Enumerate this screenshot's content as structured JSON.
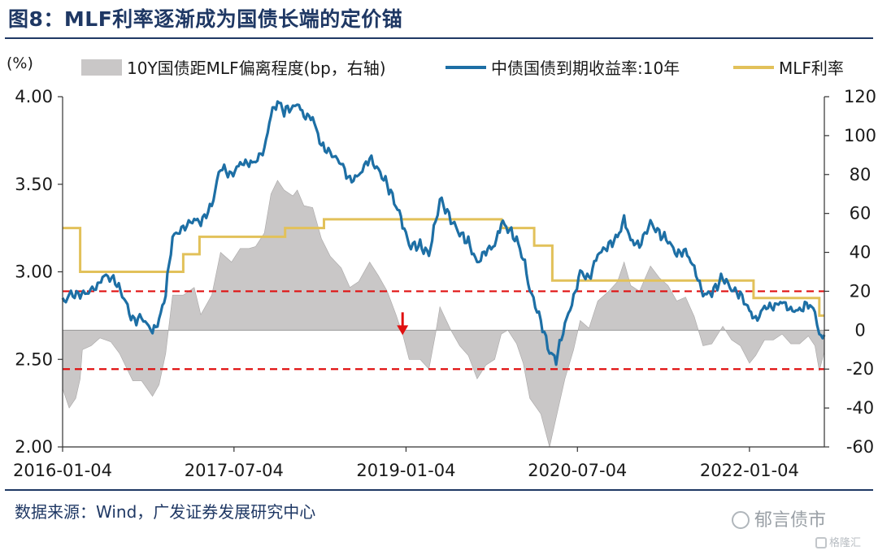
{
  "title": "图8：MLF利率逐渐成为国债长端的定价锚",
  "source": "数据来源：Wind，广发证券发展研究中心",
  "watermark": "郁言债市",
  "watermark_sub": "格隆汇",
  "colors": {
    "bar": "#c9c7c7",
    "yield": "#1d6fa5",
    "mlf": "#e2c15a",
    "ref_line": "#e01010",
    "arrow": "#e01010",
    "title": "#1f3864"
  },
  "chart_data": {
    "type": "line",
    "left_unit": "(%)",
    "left_axis": {
      "min": 2.0,
      "max": 4.0,
      "ticks": [
        "2.00",
        "2.50",
        "3.00",
        "3.50",
        "4.00"
      ]
    },
    "right_axis": {
      "min": -60,
      "max": 120,
      "ticks": [
        "-60",
        "-40",
        "-20",
        "0",
        "20",
        "40",
        "60",
        "80",
        "100",
        "120"
      ]
    },
    "x_axis": {
      "start": "2016-01-04",
      "end": "2022-08-31",
      "tick_labels": [
        "2016-01-04",
        "2017-07-04",
        "2019-01-04",
        "2020-07-04",
        "2022-01-04"
      ]
    },
    "legend": [
      "10Y国债距MLF偏离程度(bp，右轴)",
      "中债国债到期收益率:10年",
      "MLF利率"
    ],
    "series": [
      {
        "name": "中债国债到期收益率:10年",
        "axis": "left",
        "points": [
          [
            "2016-01-04",
            2.82
          ],
          [
            "2016-01-25",
            2.87
          ],
          [
            "2016-02-29",
            2.87
          ],
          [
            "2016-03-21",
            2.88
          ],
          [
            "2016-04-25",
            2.92
          ],
          [
            "2016-05-16",
            2.98
          ],
          [
            "2016-06-20",
            2.95
          ],
          [
            "2016-07-18",
            2.85
          ],
          [
            "2016-08-15",
            2.72
          ],
          [
            "2016-09-12",
            2.74
          ],
          [
            "2016-10-17",
            2.66
          ],
          [
            "2016-11-07",
            2.72
          ],
          [
            "2016-11-28",
            2.88
          ],
          [
            "2016-12-20",
            3.2
          ],
          [
            "2017-01-23",
            3.25
          ],
          [
            "2017-02-27",
            3.3
          ],
          [
            "2017-03-20",
            3.28
          ],
          [
            "2017-04-24",
            3.38
          ],
          [
            "2017-05-22",
            3.6
          ],
          [
            "2017-06-26",
            3.55
          ],
          [
            "2017-07-24",
            3.62
          ],
          [
            "2017-08-21",
            3.62
          ],
          [
            "2017-09-11",
            3.63
          ],
          [
            "2017-10-09",
            3.7
          ],
          [
            "2017-10-30",
            3.9
          ],
          [
            "2017-11-20",
            3.97
          ],
          [
            "2017-12-11",
            3.92
          ],
          [
            "2018-01-08",
            3.94
          ],
          [
            "2018-01-22",
            3.97
          ],
          [
            "2018-02-12",
            3.89
          ],
          [
            "2018-03-12",
            3.88
          ],
          [
            "2018-04-09",
            3.72
          ],
          [
            "2018-05-07",
            3.68
          ],
          [
            "2018-06-11",
            3.62
          ],
          [
            "2018-07-09",
            3.52
          ],
          [
            "2018-08-06",
            3.55
          ],
          [
            "2018-09-10",
            3.65
          ],
          [
            "2018-10-08",
            3.58
          ],
          [
            "2018-11-05",
            3.5
          ],
          [
            "2018-12-03",
            3.38
          ],
          [
            "2018-12-24",
            3.28
          ],
          [
            "2019-01-14",
            3.15
          ],
          [
            "2019-02-18",
            3.15
          ],
          [
            "2019-03-18",
            3.1
          ],
          [
            "2019-04-08",
            3.28
          ],
          [
            "2019-04-22",
            3.42
          ],
          [
            "2019-05-27",
            3.3
          ],
          [
            "2019-06-24",
            3.22
          ],
          [
            "2019-07-22",
            3.17
          ],
          [
            "2019-08-19",
            3.05
          ],
          [
            "2019-09-16",
            3.12
          ],
          [
            "2019-10-14",
            3.15
          ],
          [
            "2019-11-04",
            3.28
          ],
          [
            "2019-11-25",
            3.25
          ],
          [
            "2019-12-23",
            3.18
          ],
          [
            "2020-01-13",
            3.08
          ],
          [
            "2020-02-03",
            2.9
          ],
          [
            "2020-03-09",
            2.72
          ],
          [
            "2020-04-06",
            2.54
          ],
          [
            "2020-04-27",
            2.5
          ],
          [
            "2020-05-25",
            2.7
          ],
          [
            "2020-06-22",
            2.85
          ],
          [
            "2020-07-13",
            3.0
          ],
          [
            "2020-08-10",
            2.96
          ],
          [
            "2020-09-07",
            3.1
          ],
          [
            "2020-10-12",
            3.15
          ],
          [
            "2020-11-09",
            3.2
          ],
          [
            "2020-11-30",
            3.3
          ],
          [
            "2020-12-21",
            3.18
          ],
          [
            "2021-01-18",
            3.15
          ],
          [
            "2021-02-22",
            3.28
          ],
          [
            "2021-03-22",
            3.22
          ],
          [
            "2021-04-19",
            3.18
          ],
          [
            "2021-05-17",
            3.1
          ],
          [
            "2021-06-14",
            3.12
          ],
          [
            "2021-07-12",
            3.02
          ],
          [
            "2021-08-09",
            2.87
          ],
          [
            "2021-09-06",
            2.88
          ],
          [
            "2021-10-11",
            2.97
          ],
          [
            "2021-11-08",
            2.9
          ],
          [
            "2021-12-06",
            2.87
          ],
          [
            "2022-01-04",
            2.78
          ],
          [
            "2022-01-24",
            2.72
          ],
          [
            "2022-02-21",
            2.8
          ],
          [
            "2022-03-21",
            2.8
          ],
          [
            "2022-04-18",
            2.83
          ],
          [
            "2022-05-16",
            2.78
          ],
          [
            "2022-06-13",
            2.78
          ],
          [
            "2022-07-11",
            2.82
          ],
          [
            "2022-08-01",
            2.77
          ],
          [
            "2022-08-15",
            2.64
          ],
          [
            "2022-08-31",
            2.64
          ]
        ]
      },
      {
        "name": "MLF利率",
        "axis": "left",
        "points": [
          [
            "2016-01-04",
            3.25
          ],
          [
            "2016-02-29",
            3.25
          ],
          [
            "2016-02-29",
            3.0
          ],
          [
            "2017-01-23",
            3.0
          ],
          [
            "2017-01-23",
            3.1
          ],
          [
            "2017-03-16",
            3.1
          ],
          [
            "2017-03-16",
            3.2
          ],
          [
            "2017-12-14",
            3.2
          ],
          [
            "2017-12-14",
            3.25
          ],
          [
            "2018-04-17",
            3.25
          ],
          [
            "2018-04-17",
            3.3
          ],
          [
            "2019-11-05",
            3.3
          ],
          [
            "2019-11-05",
            3.25
          ],
          [
            "2020-02-17",
            3.25
          ],
          [
            "2020-02-17",
            3.15
          ],
          [
            "2020-04-15",
            3.15
          ],
          [
            "2020-04-15",
            2.95
          ],
          [
            "2022-01-17",
            2.95
          ],
          [
            "2022-01-17",
            2.85
          ],
          [
            "2022-08-15",
            2.85
          ],
          [
            "2022-08-15",
            2.75
          ],
          [
            "2022-08-31",
            2.75
          ]
        ]
      },
      {
        "name": "10Y国债距MLF偏离程度(bp，右轴)",
        "axis": "right",
        "type": "area",
        "points": [
          [
            "2016-01-04",
            -30
          ],
          [
            "2016-01-25",
            -40
          ],
          [
            "2016-02-15",
            -35
          ],
          [
            "2016-02-29",
            -25
          ],
          [
            "2016-03-07",
            -10
          ],
          [
            "2016-04-04",
            -8
          ],
          [
            "2016-05-02",
            -4
          ],
          [
            "2016-06-06",
            -6
          ],
          [
            "2016-07-04",
            -12
          ],
          [
            "2016-08-15",
            -26
          ],
          [
            "2016-09-12",
            -26
          ],
          [
            "2016-10-17",
            -34
          ],
          [
            "2016-11-07",
            -28
          ],
          [
            "2016-11-28",
            -12
          ],
          [
            "2016-12-20",
            18
          ],
          [
            "2017-01-23",
            18
          ],
          [
            "2017-02-27",
            22
          ],
          [
            "2017-03-20",
            8
          ],
          [
            "2017-04-24",
            18
          ],
          [
            "2017-05-22",
            40
          ],
          [
            "2017-06-26",
            35
          ],
          [
            "2017-07-24",
            42
          ],
          [
            "2017-08-21",
            42
          ],
          [
            "2017-09-11",
            43
          ],
          [
            "2017-10-09",
            50
          ],
          [
            "2017-10-30",
            70
          ],
          [
            "2017-11-20",
            77
          ],
          [
            "2017-12-11",
            72
          ],
          [
            "2018-01-08",
            69
          ],
          [
            "2018-01-22",
            72
          ],
          [
            "2018-02-12",
            64
          ],
          [
            "2018-03-12",
            63
          ],
          [
            "2018-04-09",
            47
          ],
          [
            "2018-05-07",
            38
          ],
          [
            "2018-06-11",
            32
          ],
          [
            "2018-07-09",
            22
          ],
          [
            "2018-08-06",
            25
          ],
          [
            "2018-09-10",
            35
          ],
          [
            "2018-10-08",
            28
          ],
          [
            "2018-11-05",
            20
          ],
          [
            "2018-12-03",
            8
          ],
          [
            "2018-12-24",
            -2
          ],
          [
            "2019-01-14",
            -15
          ],
          [
            "2019-02-18",
            -15
          ],
          [
            "2019-03-18",
            -20
          ],
          [
            "2019-04-08",
            -2
          ],
          [
            "2019-04-22",
            12
          ],
          [
            "2019-05-27",
            0
          ],
          [
            "2019-06-24",
            -8
          ],
          [
            "2019-07-22",
            -13
          ],
          [
            "2019-08-19",
            -25
          ],
          [
            "2019-09-16",
            -18
          ],
          [
            "2019-10-14",
            -15
          ],
          [
            "2019-11-04",
            -2
          ],
          [
            "2019-11-25",
            0
          ],
          [
            "2019-12-23",
            -7
          ],
          [
            "2020-01-13",
            -17
          ],
          [
            "2020-02-03",
            -35
          ],
          [
            "2020-03-09",
            -43
          ],
          [
            "2020-04-06",
            -60
          ],
          [
            "2020-04-27",
            -45
          ],
          [
            "2020-05-25",
            -25
          ],
          [
            "2020-06-22",
            -10
          ],
          [
            "2020-07-13",
            5
          ],
          [
            "2020-08-10",
            1
          ],
          [
            "2020-09-07",
            15
          ],
          [
            "2020-10-12",
            20
          ],
          [
            "2020-11-09",
            25
          ],
          [
            "2020-11-30",
            35
          ],
          [
            "2020-12-21",
            23
          ],
          [
            "2021-01-18",
            20
          ],
          [
            "2021-02-22",
            33
          ],
          [
            "2021-03-22",
            27
          ],
          [
            "2021-04-19",
            23
          ],
          [
            "2021-05-17",
            15
          ],
          [
            "2021-06-14",
            17
          ],
          [
            "2021-07-12",
            7
          ],
          [
            "2021-08-09",
            -8
          ],
          [
            "2021-09-06",
            -7
          ],
          [
            "2021-10-11",
            2
          ],
          [
            "2021-11-08",
            -5
          ],
          [
            "2021-12-06",
            -8
          ],
          [
            "2022-01-04",
            -17
          ],
          [
            "2022-01-24",
            -13
          ],
          [
            "2022-02-21",
            -5
          ],
          [
            "2022-03-21",
            -5
          ],
          [
            "2022-04-18",
            -2
          ],
          [
            "2022-05-16",
            -7
          ],
          [
            "2022-06-13",
            -7
          ],
          [
            "2022-07-11",
            -3
          ],
          [
            "2022-08-01",
            -8
          ],
          [
            "2022-08-15",
            -21
          ],
          [
            "2022-08-31",
            -11
          ]
        ]
      }
    ],
    "reference_lines": [
      {
        "axis": "right",
        "value": 20
      },
      {
        "axis": "right",
        "value": -20
      }
    ],
    "annotations": [
      {
        "type": "arrow",
        "date": "2018-12-24",
        "axis": "right",
        "value": 0
      }
    ]
  }
}
